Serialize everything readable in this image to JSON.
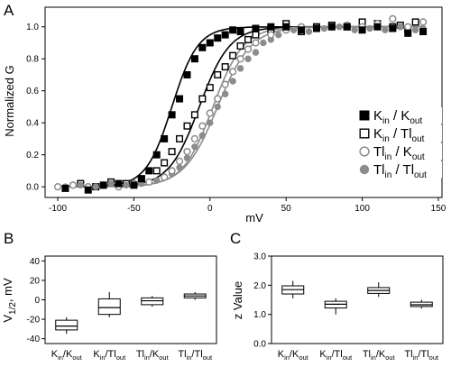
{
  "chart_data": [
    {
      "panel": "A",
      "type": "scatter",
      "xlabel": "mV",
      "ylabel": "Normalized G",
      "xlim": [
        -100,
        150
      ],
      "ylim": [
        -0.05,
        1.1
      ],
      "xticks": [
        "-100",
        "-50",
        "0",
        "50",
        "100",
        "150"
      ],
      "yticks": [
        "0.0",
        "0.2",
        "0.4",
        "0.6",
        "0.8",
        "1.0"
      ],
      "legend_position": "right",
      "series": [
        {
          "name": "K_in / K_out",
          "name_parts": [
            "K",
            "in",
            " / K",
            "out"
          ],
          "marker": "filled-square",
          "color": "#000000",
          "fit": {
            "v_half": -25,
            "slope": 8.5
          },
          "x": [
            -95,
            -80,
            -70,
            -60,
            -50,
            -45,
            -40,
            -35,
            -30,
            -25,
            -20,
            -15,
            -10,
            -5,
            0,
            5,
            10,
            15,
            20,
            30,
            40,
            50,
            60,
            70,
            80,
            90,
            100,
            110,
            120,
            130,
            140
          ],
          "y": [
            -0.01,
            -0.02,
            0.01,
            0.02,
            0.01,
            0.05,
            0.1,
            0.2,
            0.3,
            0.45,
            0.55,
            0.7,
            0.8,
            0.87,
            0.9,
            0.93,
            0.95,
            0.98,
            0.97,
            0.99,
            1.0,
            1.0,
            0.98,
            0.99,
            1.0,
            1.0,
            0.98,
            1.0,
            0.99,
            0.96,
            0.97
          ]
        },
        {
          "name": "K_in / Tl_out",
          "name_parts": [
            "K",
            "in",
            " / Tl",
            "out"
          ],
          "marker": "open-square",
          "color": "#000000",
          "fit": {
            "v_half": -7,
            "slope": 10
          },
          "x": [
            -85,
            -75,
            -65,
            -55,
            -45,
            -35,
            -30,
            -25,
            -20,
            -15,
            -10,
            -5,
            0,
            5,
            10,
            15,
            20,
            25,
            30,
            40,
            50,
            60,
            70,
            80,
            90,
            100,
            110,
            120,
            125,
            130,
            135
          ],
          "y": [
            0.02,
            0.0,
            0.03,
            0.02,
            0.05,
            0.1,
            0.15,
            0.22,
            0.3,
            0.38,
            0.45,
            0.55,
            0.62,
            0.7,
            0.75,
            0.82,
            0.88,
            0.92,
            0.95,
            0.98,
            1.02,
            0.97,
            1.0,
            1.01,
            1.0,
            1.03,
            1.02,
            1.0,
            1.01,
            0.98,
            1.03
          ]
        },
        {
          "name": "Tl_in / K_out",
          "name_parts": [
            "Tl",
            "in",
            " / K",
            "out"
          ],
          "marker": "open-circle",
          "color": "#8c8c8c",
          "fit": {
            "v_half": 2,
            "slope": 10
          },
          "x": [
            -100,
            -90,
            -80,
            -70,
            -60,
            -50,
            -40,
            -30,
            -25,
            -20,
            -15,
            -10,
            -5,
            0,
            5,
            10,
            15,
            20,
            25,
            30,
            40,
            50,
            60,
            70,
            80,
            90,
            100,
            110,
            120,
            130,
            140
          ],
          "y": [
            0.0,
            0.01,
            0.0,
            0.01,
            0.0,
            0.02,
            0.03,
            0.06,
            0.1,
            0.16,
            0.22,
            0.3,
            0.38,
            0.46,
            0.55,
            0.64,
            0.72,
            0.8,
            0.86,
            0.9,
            0.95,
            0.98,
            1.0,
            0.99,
            1.0,
            1.01,
            1.0,
            1.02,
            1.05,
            1.0,
            1.03
          ]
        },
        {
          "name": "Tl_in / Tl_out",
          "name_parts": [
            "Tl",
            "in",
            " / Tl",
            "out"
          ],
          "marker": "filled-circle",
          "color": "#8c8c8c",
          "fit": {
            "v_half": 5,
            "slope": 11
          },
          "x": [
            -95,
            -85,
            -75,
            -65,
            -55,
            -45,
            -35,
            -25,
            -20,
            -15,
            -10,
            -5,
            0,
            5,
            10,
            15,
            20,
            25,
            30,
            35,
            40,
            45,
            55,
            65,
            75,
            85,
            95,
            105,
            115,
            125,
            135,
            140
          ],
          "y": [
            0.0,
            0.01,
            0.0,
            0.02,
            0.01,
            0.02,
            0.04,
            0.08,
            0.12,
            0.18,
            0.25,
            0.32,
            0.4,
            0.5,
            0.58,
            0.66,
            0.74,
            0.8,
            0.84,
            0.9,
            0.92,
            0.95,
            0.98,
            0.97,
            0.99,
            1.0,
            0.98,
            0.99,
            0.98,
            1.0,
            0.98,
            0.99
          ]
        }
      ]
    },
    {
      "panel": "B",
      "type": "box",
      "ylabel_parts": [
        "V",
        "1/2",
        ", mV"
      ],
      "ylim": [
        -45,
        45
      ],
      "yticks": [
        "-40",
        "-20",
        "0",
        "20",
        "40"
      ],
      "categories": [
        {
          "parts": [
            "K",
            "in",
            "/K",
            "out"
          ]
        },
        {
          "parts": [
            "K",
            "in",
            "/Tl",
            "out"
          ]
        },
        {
          "parts": [
            "Tl",
            "in",
            "/K",
            "out"
          ]
        },
        {
          "parts": [
            "Tl",
            "in",
            "/Tl",
            "out"
          ]
        }
      ],
      "boxes": [
        {
          "min": -35,
          "q1": -31,
          "median": -27,
          "q3": -21,
          "max": -18
        },
        {
          "min": -18,
          "q1": -15,
          "median": -8,
          "q3": 1,
          "max": 8
        },
        {
          "min": -7,
          "q1": -5,
          "median": -1,
          "q3": 2,
          "max": 4
        },
        {
          "min": 0,
          "q1": 2,
          "median": 4,
          "q3": 6,
          "max": 8
        }
      ]
    },
    {
      "panel": "C",
      "type": "box",
      "ylabel": "z Value",
      "ylim": [
        0.0,
        3.0
      ],
      "yticks": [
        "0.0",
        "1.0",
        "2.0",
        "3.0"
      ],
      "categories": [
        {
          "parts": [
            "K",
            "in",
            "/K",
            "out"
          ]
        },
        {
          "parts": [
            "K",
            "in",
            "/Tl",
            "out"
          ]
        },
        {
          "parts": [
            "Tl",
            "in",
            "/K",
            "out"
          ]
        },
        {
          "parts": [
            "Tl",
            "in",
            "/Tl",
            "out"
          ]
        }
      ],
      "boxes": [
        {
          "min": 1.55,
          "q1": 1.7,
          "median": 1.85,
          "q3": 1.98,
          "max": 2.15
        },
        {
          "min": 1.0,
          "q1": 1.22,
          "median": 1.35,
          "q3": 1.45,
          "max": 1.55
        },
        {
          "min": 1.6,
          "q1": 1.72,
          "median": 1.82,
          "q3": 1.92,
          "max": 2.1
        },
        {
          "min": 1.2,
          "q1": 1.27,
          "median": 1.33,
          "q3": 1.42,
          "max": 1.5
        }
      ]
    }
  ]
}
